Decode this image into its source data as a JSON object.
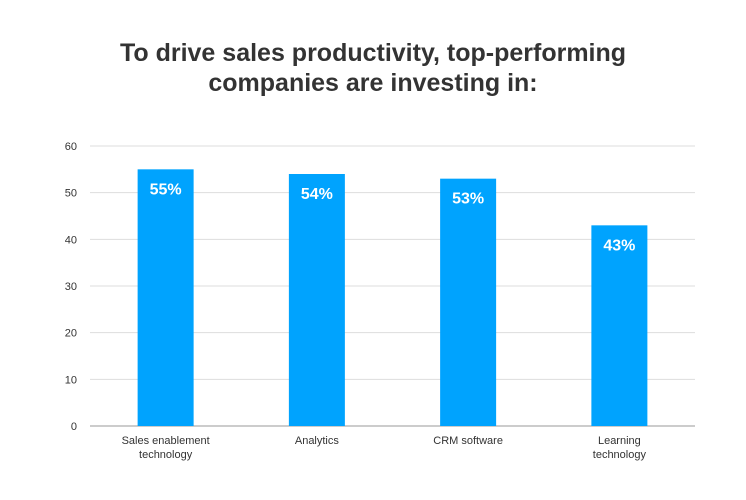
{
  "chart_data": {
    "type": "bar",
    "title_lines": [
      "To drive sales productivity, top-performing",
      "companies are investing in:"
    ],
    "categories": [
      [
        "Sales enablement",
        "technology"
      ],
      [
        "Analytics"
      ],
      [
        "CRM software"
      ],
      [
        "Learning",
        "technology"
      ]
    ],
    "values": [
      55,
      54,
      53,
      43
    ],
    "data_labels": [
      "55%",
      "54%",
      "53%",
      "43%"
    ],
    "ylim": [
      0,
      60
    ],
    "yticks": [
      0,
      10,
      20,
      30,
      40,
      50,
      60
    ],
    "grid": true,
    "bar_color": "#00a3fe",
    "grid_color": "#dddddd",
    "axis_color": "#999999",
    "text_color": "#333333",
    "data_label_color": "#ffffff"
  }
}
